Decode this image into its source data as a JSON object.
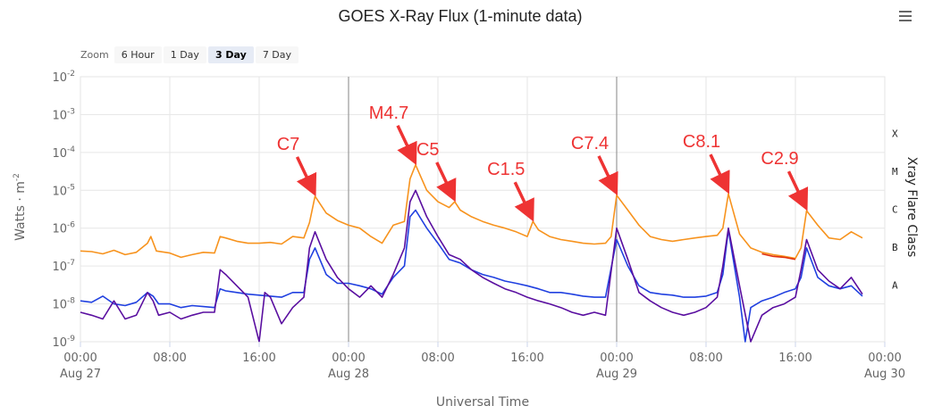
{
  "chart_data": {
    "type": "line",
    "title": "GOES X-Ray Flux (1-minute data)",
    "xlabel": "Universal Time",
    "ylabel": "Watts · m",
    "ylabel_sup": "-2",
    "right_label": "Xray Flare Class",
    "y_scale": "log",
    "ylim": [
      1e-09,
      0.01
    ],
    "y_ticks": [
      {
        "base": "10",
        "exp": "-9"
      },
      {
        "base": "10",
        "exp": "-8"
      },
      {
        "base": "10",
        "exp": "-7"
      },
      {
        "base": "10",
        "exp": "-6"
      },
      {
        "base": "10",
        "exp": "-5"
      },
      {
        "base": "10",
        "exp": "-4"
      },
      {
        "base": "10",
        "exp": "-3"
      },
      {
        "base": "10",
        "exp": "-2"
      }
    ],
    "x_range_hours": [
      0,
      72
    ],
    "x_ticks": [
      {
        "h": 0,
        "label": "00:00",
        "sub": "Aug 27"
      },
      {
        "h": 8,
        "label": "08:00",
        "sub": ""
      },
      {
        "h": 16,
        "label": "16:00",
        "sub": ""
      },
      {
        "h": 24,
        "label": "00:00",
        "sub": "Aug 28"
      },
      {
        "h": 32,
        "label": "08:00",
        "sub": ""
      },
      {
        "h": 40,
        "label": "16:00",
        "sub": ""
      },
      {
        "h": 48,
        "label": "00:00",
        "sub": "Aug 29"
      },
      {
        "h": 56,
        "label": "08:00",
        "sub": ""
      },
      {
        "h": 64,
        "label": "16:00",
        "sub": ""
      },
      {
        "h": 72,
        "label": "00:00",
        "sub": "Aug 30"
      }
    ],
    "day_boundaries_hours": [
      24,
      48
    ],
    "flare_classes": [
      {
        "label": "X",
        "flux": 0.0001
      },
      {
        "label": "M",
        "flux": 1e-05
      },
      {
        "label": "C",
        "flux": 1e-06
      },
      {
        "label": "B",
        "flux": 1e-07
      },
      {
        "label": "A",
        "flux": 1e-08
      }
    ],
    "annotations": [
      {
        "label": "C7",
        "h": 21,
        "flux": 7e-06
      },
      {
        "label": "M4.7",
        "h": 30,
        "flux": 4.7e-05
      },
      {
        "label": "C5",
        "h": 33.5,
        "flux": 5e-06
      },
      {
        "label": "C1.5",
        "h": 40.5,
        "flux": 1.5e-06
      },
      {
        "label": "C7.4",
        "h": 48,
        "flux": 7.4e-06
      },
      {
        "label": "C8.1",
        "h": 58,
        "flux": 8.1e-06
      },
      {
        "label": "C2.9",
        "h": 65,
        "flux": 2.9e-06
      }
    ],
    "series": [
      {
        "color": "#f7931e",
        "points": [
          [
            0,
            2.5e-07
          ],
          [
            1,
            2.4e-07
          ],
          [
            2,
            2.1e-07
          ],
          [
            3,
            2.6e-07
          ],
          [
            4,
            2e-07
          ],
          [
            5,
            2.3e-07
          ],
          [
            6,
            4e-07
          ],
          [
            6.3,
            6e-07
          ],
          [
            6.8,
            2.5e-07
          ],
          [
            8,
            2.2e-07
          ],
          [
            9,
            1.7e-07
          ],
          [
            10,
            2e-07
          ],
          [
            11,
            2.3e-07
          ],
          [
            12,
            2.2e-07
          ],
          [
            12.5,
            6e-07
          ],
          [
            13,
            5.5e-07
          ],
          [
            14,
            4.5e-07
          ],
          [
            15,
            4e-07
          ],
          [
            16,
            4e-07
          ],
          [
            17,
            4.2e-07
          ],
          [
            18,
            3.8e-07
          ],
          [
            19,
            6e-07
          ],
          [
            20,
            5.5e-07
          ],
          [
            20.5,
            1.4e-06
          ],
          [
            21,
            7e-06
          ],
          [
            22,
            2.5e-06
          ],
          [
            23,
            1.6e-06
          ],
          [
            24,
            1.2e-06
          ],
          [
            25,
            1e-06
          ],
          [
            26,
            6e-07
          ],
          [
            27,
            4e-07
          ],
          [
            28,
            1.2e-06
          ],
          [
            29,
            1.5e-06
          ],
          [
            29.5,
            2e-05
          ],
          [
            30,
            4.7e-05
          ],
          [
            31,
            1e-05
          ],
          [
            32,
            5e-06
          ],
          [
            33,
            3.5e-06
          ],
          [
            33.5,
            5e-06
          ],
          [
            34,
            3e-06
          ],
          [
            35,
            2e-06
          ],
          [
            36,
            1.5e-06
          ],
          [
            37,
            1.2e-06
          ],
          [
            38,
            1e-06
          ],
          [
            39,
            8e-07
          ],
          [
            40,
            6e-07
          ],
          [
            40.5,
            1.5e-06
          ],
          [
            41,
            9e-07
          ],
          [
            42,
            6e-07
          ],
          [
            43,
            5e-07
          ],
          [
            44,
            4.5e-07
          ],
          [
            45,
            4e-07
          ],
          [
            46,
            3.8e-07
          ],
          [
            47,
            4e-07
          ],
          [
            47.5,
            6e-07
          ],
          [
            48,
            7.4e-06
          ],
          [
            49,
            3e-06
          ],
          [
            50,
            1.2e-06
          ],
          [
            51,
            6e-07
          ],
          [
            52,
            5e-07
          ],
          [
            53,
            4.5e-07
          ],
          [
            54,
            5e-07
          ],
          [
            55,
            5.5e-07
          ],
          [
            56,
            6e-07
          ],
          [
            57,
            6.5e-07
          ],
          [
            57.5,
            1e-06
          ],
          [
            58,
            8.1e-06
          ],
          [
            59,
            7e-07
          ],
          [
            60,
            3e-07
          ],
          [
            61,
            2.3e-07
          ],
          [
            62,
            2e-07
          ],
          [
            63,
            1.8e-07
          ],
          [
            64,
            1.6e-07
          ],
          [
            64.5,
            3e-07
          ],
          [
            65,
            2.9e-06
          ],
          [
            66,
            1.2e-06
          ],
          [
            67,
            5.5e-07
          ],
          [
            68,
            5e-07
          ],
          [
            69,
            8e-07
          ],
          [
            70,
            5.5e-07
          ]
        ]
      },
      {
        "color": "#e03010",
        "points": [
          [
            61,
            2.1e-07
          ],
          [
            62,
            1.8e-07
          ],
          [
            63,
            1.7e-07
          ],
          [
            64,
            1.5e-07
          ]
        ]
      },
      {
        "color": "#2040e0",
        "points": [
          [
            0,
            1.2e-08
          ],
          [
            1,
            1.1e-08
          ],
          [
            2,
            1.6e-08
          ],
          [
            3,
            1e-08
          ],
          [
            4,
            9e-09
          ],
          [
            5,
            1.1e-08
          ],
          [
            6,
            2e-08
          ],
          [
            6.5,
            1.6e-08
          ],
          [
            7,
            1e-08
          ],
          [
            8,
            1e-08
          ],
          [
            9,
            8e-09
          ],
          [
            10,
            9e-09
          ],
          [
            11,
            8.5e-09
          ],
          [
            12,
            8e-09
          ],
          [
            12.5,
            2.5e-08
          ],
          [
            13,
            2.2e-08
          ],
          [
            14,
            2e-08
          ],
          [
            15,
            1.8e-08
          ],
          [
            16,
            1.7e-08
          ],
          [
            17,
            1.6e-08
          ],
          [
            18,
            1.5e-08
          ],
          [
            19,
            2e-08
          ],
          [
            20,
            2e-08
          ],
          [
            20.5,
            1.5e-07
          ],
          [
            21,
            3e-07
          ],
          [
            22,
            6e-08
          ],
          [
            23,
            3.5e-08
          ],
          [
            24,
            3.5e-08
          ],
          [
            25,
            3e-08
          ],
          [
            26,
            2.5e-08
          ],
          [
            27,
            1.8e-08
          ],
          [
            28,
            5e-08
          ],
          [
            29,
            1e-07
          ],
          [
            29.5,
            2e-06
          ],
          [
            30,
            3e-06
          ],
          [
            31,
            1e-06
          ],
          [
            32,
            4e-07
          ],
          [
            33,
            1.5e-07
          ],
          [
            34,
            1.2e-07
          ],
          [
            35,
            8e-08
          ],
          [
            36,
            6e-08
          ],
          [
            37,
            5e-08
          ],
          [
            38,
            4e-08
          ],
          [
            39,
            3.5e-08
          ],
          [
            40,
            3e-08
          ],
          [
            41,
            2.5e-08
          ],
          [
            42,
            2e-08
          ],
          [
            43,
            2e-08
          ],
          [
            44,
            1.8e-08
          ],
          [
            45,
            1.6e-08
          ],
          [
            46,
            1.5e-08
          ],
          [
            47,
            1.5e-08
          ],
          [
            48,
            5e-07
          ],
          [
            49,
            1e-07
          ],
          [
            50,
            3e-08
          ],
          [
            51,
            2e-08
          ],
          [
            52,
            1.8e-08
          ],
          [
            53,
            1.7e-08
          ],
          [
            54,
            1.5e-08
          ],
          [
            55,
            1.5e-08
          ],
          [
            56,
            1.6e-08
          ],
          [
            57,
            2e-08
          ],
          [
            57.5,
            6e-08
          ],
          [
            58,
            9e-07
          ],
          [
            59,
            1.5e-08
          ],
          [
            59.5,
            1e-09
          ],
          [
            60,
            8e-09
          ],
          [
            61,
            1.2e-08
          ],
          [
            62,
            1.5e-08
          ],
          [
            63,
            2e-08
          ],
          [
            64,
            2.5e-08
          ],
          [
            64.5,
            5e-08
          ],
          [
            65,
            3e-07
          ],
          [
            66,
            5e-08
          ],
          [
            67,
            3e-08
          ],
          [
            68,
            2.5e-08
          ],
          [
            69,
            3e-08
          ],
          [
            70,
            1.6e-08
          ]
        ]
      },
      {
        "color": "#5a0fa0",
        "points": [
          [
            0,
            6e-09
          ],
          [
            1,
            5e-09
          ],
          [
            2,
            4e-09
          ],
          [
            3,
            1.2e-08
          ],
          [
            4,
            4e-09
          ],
          [
            5,
            5e-09
          ],
          [
            6,
            2e-08
          ],
          [
            6.5,
            1.2e-08
          ],
          [
            7,
            5e-09
          ],
          [
            8,
            6e-09
          ],
          [
            9,
            4e-09
          ],
          [
            10,
            5e-09
          ],
          [
            11,
            6e-09
          ],
          [
            12,
            6e-09
          ],
          [
            12.5,
            8e-08
          ],
          [
            13,
            6e-08
          ],
          [
            14,
            3e-08
          ],
          [
            15,
            1.5e-08
          ],
          [
            16,
            1e-09
          ],
          [
            16.5,
            2e-08
          ],
          [
            17,
            1.5e-08
          ],
          [
            18,
            3e-09
          ],
          [
            19,
            8e-09
          ],
          [
            20,
            1.5e-08
          ],
          [
            20.5,
            3e-07
          ],
          [
            21,
            8e-07
          ],
          [
            22,
            1.5e-07
          ],
          [
            23,
            5e-08
          ],
          [
            24,
            2.5e-08
          ],
          [
            25,
            1.5e-08
          ],
          [
            26,
            3e-08
          ],
          [
            27,
            1.5e-08
          ],
          [
            28,
            6e-08
          ],
          [
            29,
            3e-07
          ],
          [
            29.5,
            5e-06
          ],
          [
            30,
            1e-05
          ],
          [
            31,
            2e-06
          ],
          [
            32,
            6e-07
          ],
          [
            33,
            2e-07
          ],
          [
            34,
            1.5e-07
          ],
          [
            35,
            8e-08
          ],
          [
            36,
            5e-08
          ],
          [
            37,
            3.5e-08
          ],
          [
            38,
            2.5e-08
          ],
          [
            39,
            2e-08
          ],
          [
            40,
            1.5e-08
          ],
          [
            41,
            1.2e-08
          ],
          [
            42,
            1e-08
          ],
          [
            43,
            8e-09
          ],
          [
            44,
            6e-09
          ],
          [
            45,
            5e-09
          ],
          [
            46,
            6e-09
          ],
          [
            47,
            5e-09
          ],
          [
            48,
            1e-06
          ],
          [
            49,
            1.5e-07
          ],
          [
            50,
            2e-08
          ],
          [
            51,
            1.2e-08
          ],
          [
            52,
            8e-09
          ],
          [
            53,
            6e-09
          ],
          [
            54,
            5e-09
          ],
          [
            55,
            6e-09
          ],
          [
            56,
            8e-09
          ],
          [
            57,
            1.5e-08
          ],
          [
            57.5,
            1e-07
          ],
          [
            58,
            1e-06
          ],
          [
            59,
            3e-08
          ],
          [
            60,
            1e-09
          ],
          [
            61,
            5e-09
          ],
          [
            62,
            8e-09
          ],
          [
            63,
            1e-08
          ],
          [
            64,
            1.5e-08
          ],
          [
            64.5,
            8e-08
          ],
          [
            65,
            5e-07
          ],
          [
            66,
            8e-08
          ],
          [
            67,
            4e-08
          ],
          [
            68,
            2.5e-08
          ],
          [
            69,
            5e-08
          ],
          [
            70,
            1.8e-08
          ]
        ]
      }
    ]
  },
  "zoom": {
    "label": "Zoom",
    "buttons": [
      "6 Hour",
      "1 Day",
      "3 Day",
      "7 Day"
    ],
    "active": "3 Day"
  },
  "icons": {
    "menu": "hamburger-menu-icon"
  },
  "colors": {
    "goes_long": "#f7931e",
    "goes_short": "#2040e0",
    "goes_short_secondary": "#5a0fa0",
    "annotation": "#ee3333",
    "grid": "#e6e6e6",
    "day_line": "#999999"
  }
}
